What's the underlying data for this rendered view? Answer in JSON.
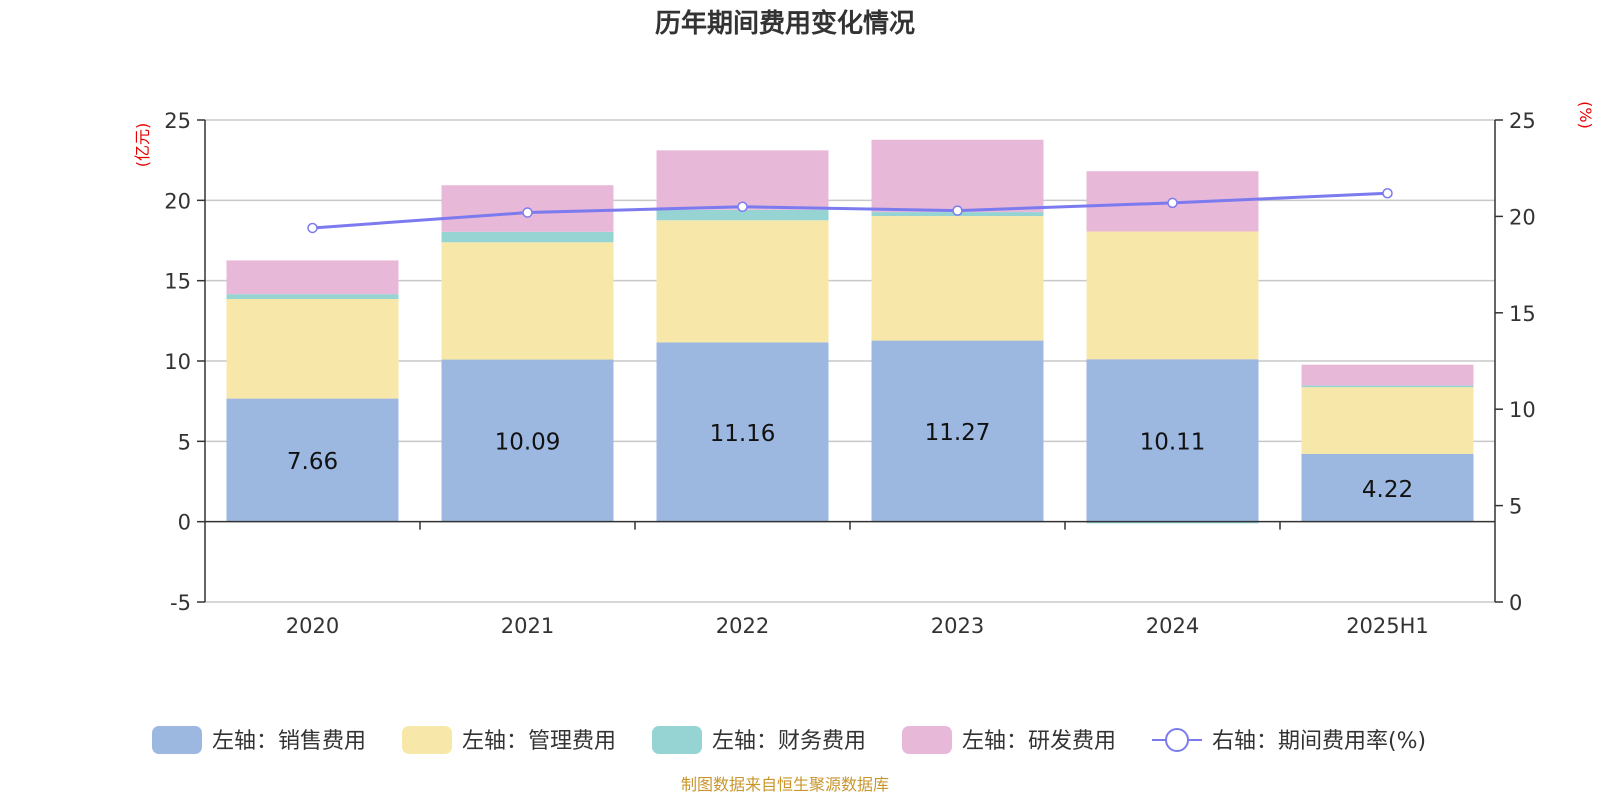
{
  "chart_data": {
    "type": "bar",
    "title": "历年期间费用变化情况",
    "categories": [
      "2020",
      "2021",
      "2022",
      "2023",
      "2024",
      "2025H1"
    ],
    "stacked": true,
    "series": [
      {
        "name": "左轴：销售费用",
        "axis": "left",
        "type": "bar",
        "color": "#9cb7e0",
        "values": [
          7.66,
          10.09,
          11.16,
          11.27,
          10.11,
          4.22
        ],
        "labels_shown": true
      },
      {
        "name": "左轴：管理费用",
        "axis": "left",
        "type": "bar",
        "color": "#f7e7a8",
        "values": [
          6.2,
          7.3,
          7.6,
          7.75,
          7.95,
          4.15
        ]
      },
      {
        "name": "左轴：财务费用",
        "axis": "left",
        "type": "bar",
        "color": "#96d4d4",
        "values": [
          0.3,
          0.65,
          0.65,
          0.25,
          -0.1,
          0.1
        ]
      },
      {
        "name": "左轴：研发费用",
        "axis": "left",
        "type": "bar",
        "color": "#e8b8d8",
        "values": [
          2.1,
          2.9,
          3.7,
          4.5,
          3.75,
          1.3
        ]
      },
      {
        "name": "右轴：期间费用率(%)",
        "axis": "right",
        "type": "line",
        "color": "#7b7bef",
        "values": [
          19.4,
          20.2,
          20.5,
          20.3,
          20.7,
          21.2
        ]
      }
    ],
    "left_axis": {
      "unit": "(亿元)",
      "ylim": [
        -5,
        25
      ],
      "ticks": [
        "-5",
        "0",
        "5",
        "10",
        "15",
        "20",
        "25"
      ]
    },
    "right_axis": {
      "unit": "(%)",
      "ylim": [
        0,
        25
      ],
      "ticks": [
        "0",
        "5",
        "10",
        "15",
        "20",
        "25"
      ]
    },
    "grid": true,
    "legend_position": "bottom"
  },
  "source_text": "制图数据来自恒生聚源数据库"
}
